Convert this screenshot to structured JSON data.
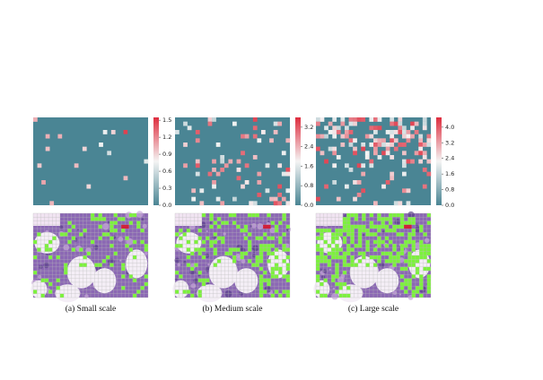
{
  "figure": {
    "panels": [
      {
        "caption": "(a) Small scale",
        "colorbar": {
          "lim": [
            0,
            1.55
          ],
          "ticks": [
            {
              "value": 0,
              "label": "0.0"
            },
            0.3,
            0.6,
            0.9,
            1.2,
            1.5
          ]
        }
      },
      {
        "caption": "(b) Medium scale",
        "colorbar": {
          "lim": [
            0,
            3.6
          ],
          "ticks": [
            {
              "value": 0,
              "label": "0.0"
            },
            0.8,
            1.6,
            2.4,
            3.2
          ]
        }
      },
      {
        "caption": "(c) Large scale",
        "colorbar": {
          "lim": [
            0,
            4.5
          ],
          "ticks": [
            {
              "value": 0,
              "label": "0.0"
            },
            0.8,
            1.6,
            2.4,
            3.2,
            {
              "value": 4,
              "label": "4.0"
            }
          ]
        }
      }
    ]
  }
}
